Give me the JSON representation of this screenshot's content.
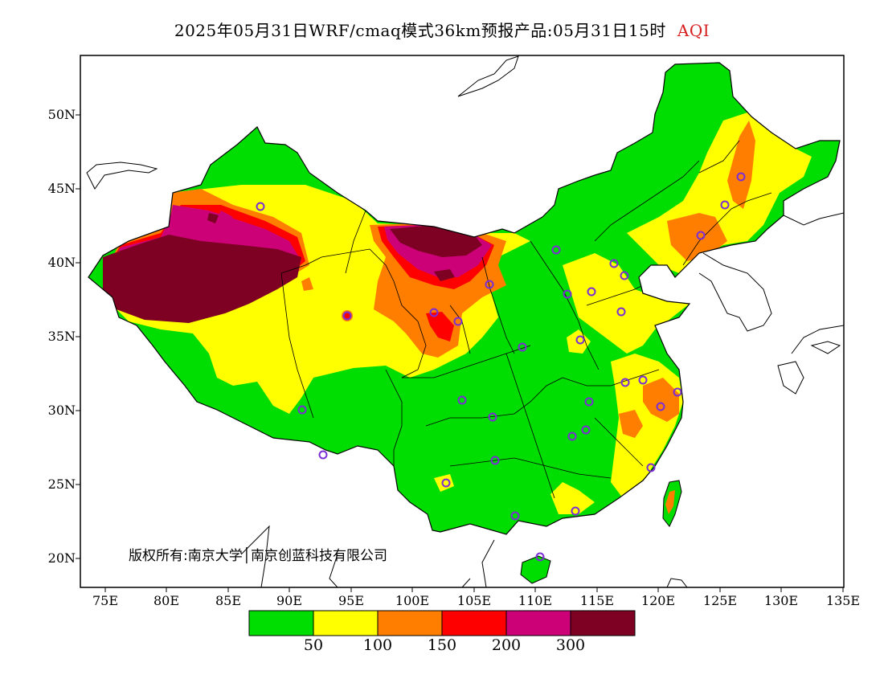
{
  "title": {
    "main": "2025年05月31日WRF/cmaq模式36km预报产品:05月31日15时",
    "variable": "AQI"
  },
  "map": {
    "lon_ticks": [
      "75E",
      "80E",
      "85E",
      "90E",
      "95E",
      "100E",
      "105E",
      "110E",
      "115E",
      "120E",
      "125E",
      "130E",
      "135E"
    ],
    "lat_ticks": [
      "50N",
      "45N",
      "40N",
      "35N",
      "30N",
      "25N",
      "20N"
    ],
    "copyright": "版权所有:南京大学│南京创蓝科技有限公司"
  },
  "legend": {
    "colors": [
      "#00dd00",
      "#ffff00",
      "#ff7e00",
      "#ff0000",
      "#cc0077",
      "#7e0023"
    ],
    "labels": [
      "50",
      "100",
      "150",
      "200",
      "300"
    ]
  }
}
